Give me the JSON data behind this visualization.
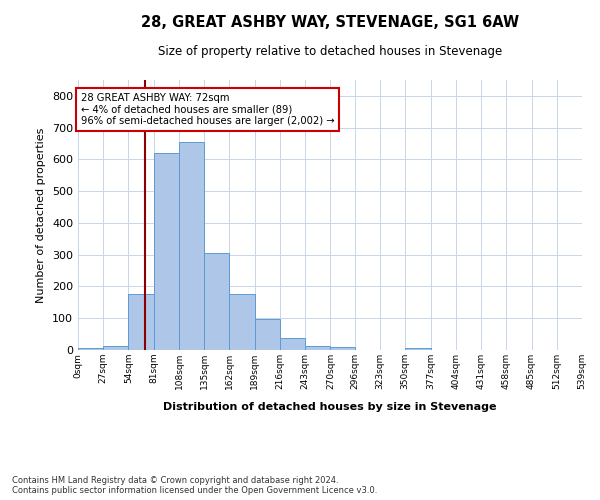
{
  "title": "28, GREAT ASHBY WAY, STEVENAGE, SG1 6AW",
  "subtitle": "Size of property relative to detached houses in Stevenage",
  "xlabel": "Distribution of detached houses by size in Stevenage",
  "ylabel": "Number of detached properties",
  "bin_edges": [
    0,
    27,
    54,
    81,
    108,
    135,
    162,
    189,
    216,
    243,
    270,
    296,
    323,
    350,
    377,
    404,
    431,
    458,
    485,
    512,
    539
  ],
  "bar_heights": [
    5,
    13,
    175,
    620,
    655,
    305,
    175,
    98,
    37,
    13,
    10,
    0,
    0,
    5,
    0,
    0,
    0,
    0,
    0,
    0
  ],
  "bar_color": "#aec6e8",
  "bar_edgecolor": "#5b9bd5",
  "property_size": 72,
  "vline_color": "#8b0000",
  "annotation_text": "28 GREAT ASHBY WAY: 72sqm\n← 4% of detached houses are smaller (89)\n96% of semi-detached houses are larger (2,002) →",
  "annotation_box_color": "#ffffff",
  "annotation_box_edgecolor": "#cc0000",
  "ylim": [
    0,
    850
  ],
  "yticks": [
    0,
    100,
    200,
    300,
    400,
    500,
    600,
    700,
    800
  ],
  "background_color": "#ffffff",
  "grid_color": "#c8d4e8",
  "footer": "Contains HM Land Registry data © Crown copyright and database right 2024.\nContains public sector information licensed under the Open Government Licence v3.0."
}
